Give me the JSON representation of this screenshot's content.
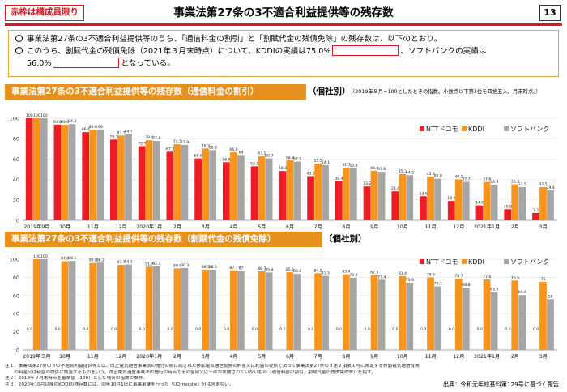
{
  "badge": "赤枠は構成員限り",
  "title": "事業法第27条の3不適合利益提供等の残存数",
  "page_number": "13",
  "info": {
    "line1": "事業法第27条の3不適合利益提供等のうち、「通信料金の割引」と「割賦代金の残債免除」の残存数は、以下のとおり。",
    "line2a": "このうち、割賦代金の残債免除（2021年３月末時点）について、KDDIの実績は75.0%",
    "line2b": "、ソフトバンクの実績は",
    "line3": "56.0%",
    "line3b": "となっている。"
  },
  "section1": {
    "bar_label": "事業法第27条の3不適合利益提供等の残存数（通信料金の割引）",
    "tag": "（個社別）",
    "note": "（2019年９月=100としたときの指数。小数点以下第2位を四捨五入。月末時点。）"
  },
  "section2": {
    "bar_label": "事業法第27条の3不適合利益提供等の残存数（割賦代金の残債免除）",
    "tag": "（個社別）"
  },
  "footnotes": [
    "注１：事業法第27条の３の不適合利益提供等とは、改正電気通信事業法の施行の前に約された移動電気通信役務の料金又は利益の提供であって事業法第27条の３第２項第１号に規定する移動電気通信役務",
    "　　の料金又は利益の提供に該当するものをいう。改正電気通信事業法の施行の時点でその全部又は一部が実施されていないもの（通信料金の割引、割賦代金の残債免除等）を指す。",
    "注２：2019年９月末時点を基準値（100）とした場合の指数の推移。",
    "注３：2020年10月以降のKDDIの残存数には、同年10月1日に事業承継を行った「UQ mobile」分は含まない。"
  ],
  "source": "出典：令和元年総基料第129号に基づく報告",
  "colors": {
    "docomo": "#ee1c25",
    "kddi": "#f7941d",
    "softbank": "#a6a6a6",
    "accent": "#e0141e",
    "section": "#e8901e"
  },
  "chart_data": [
    {
      "type": "bar",
      "categories": [
        "2019年9月",
        "10月",
        "11月",
        "12月",
        "2020年1月",
        "2月",
        "3月",
        "4月",
        "5月",
        "6月",
        "7月",
        "8月",
        "9月",
        "10月",
        "11月",
        "12月",
        "2021年1月",
        "2月",
        "3月"
      ],
      "series": [
        {
          "name": "NTTドコモ",
          "values": [
            100,
            93.8,
            86.4,
            79.1,
            72.7,
            67.2,
            60.6,
            56.9,
            52.9,
            48.3,
            43.3,
            38.4,
            33.2,
            28.4,
            23.6,
            18.9,
            14.6,
            10.9,
            7.2
          ]
        },
        {
          "name": "KDDI",
          "values": [
            100,
            93.6,
            88.8,
            83.1,
            78.4,
            74.5,
            70.3,
            66.6,
            63.1,
            58.8,
            55.5,
            51.7,
            48.6,
            45.3,
            42.8,
            40.1,
            37.6,
            35.3,
            32.5
          ]
        },
        {
          "name": "ソフトバンク",
          "values": [
            100,
            94.3,
            89.0,
            84.7,
            77.8,
            73.9,
            68.8,
            64.0,
            60.7,
            57.5,
            54.1,
            50.9,
            47.6,
            44.2,
            40.8,
            37.7,
            34.9,
            32.5,
            29.4
          ]
        }
      ],
      "ylim": [
        0,
        100
      ],
      "yticks": [
        0,
        20,
        40,
        60,
        80,
        100
      ],
      "legend_position": "right"
    },
    {
      "type": "bar",
      "categories": [
        "2019年９月",
        "10月",
        "11月",
        "12月",
        "2020年1月",
        "2月",
        "3月",
        "4月",
        "5月",
        "6月",
        "7月",
        "8月",
        "9月",
        "10月",
        "11月",
        "12月",
        "2021年1月",
        "2月",
        "3月"
      ],
      "series": [
        {
          "name": "NTTドコモ",
          "values": [
            0.0,
            0.0,
            0.0,
            0.0,
            0.0,
            0.0,
            0.0,
            0.0,
            0.0,
            0.0,
            0.0,
            0.0,
            0.0,
            0.0,
            0.0,
            0.0,
            0.0,
            0.0,
            0.0
          ]
        },
        {
          "name": "KDDI",
          "values": [
            100,
            97.8,
            95.8,
            93.7,
            91.7,
            89.9,
            88.5,
            87.7,
            86.7,
            85.6,
            84.5,
            83.4,
            82.5,
            81.4,
            79.9,
            78.7,
            77.6,
            76.5,
            75.0
          ]
        },
        {
          "name": "ソフトバンク",
          "values": [
            100,
            98.1,
            96.2,
            94.1,
            92.1,
            90.3,
            88.5,
            87.0,
            85.4,
            83.8,
            81.5,
            79.4,
            77.4,
            73.9,
            70.1,
            68.8,
            63.9,
            60.6,
            56.0
          ]
        }
      ],
      "ylim": [
        0,
        100
      ],
      "yticks": [
        0,
        20,
        40,
        60,
        80,
        100
      ],
      "legend_position": "right"
    }
  ]
}
